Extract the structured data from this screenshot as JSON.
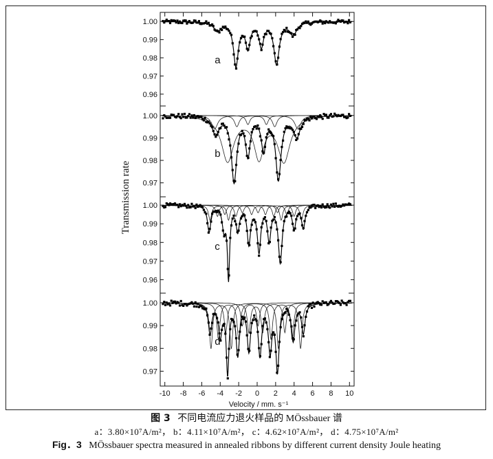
{
  "caption": {
    "cn_fig": "图 3",
    "cn_text": "不同电流应力退火样品的 MÖssbauer 谱",
    "sub_a": "a：3.80×10⁷A/m²，",
    "sub_b": "b：4.11×10⁷A/m²，",
    "sub_c": "c：4.62×10⁷A/m²，",
    "sub_d": "d：4.75×10⁷A/m²",
    "en_fig": "Fig．3",
    "en_text": "MÖssbauer spectra measured in annealed ribbons by different current density Joule heating"
  },
  "chart_data": {
    "type": "scatter",
    "xlabel": "Velocity / mm. s⁻¹",
    "ylabel": "Transmission rate",
    "xlim": [
      -10.5,
      10.5
    ],
    "xticks": [
      -10,
      -8,
      -6,
      -4,
      -2,
      0,
      2,
      4,
      6,
      8,
      10
    ],
    "series_style": "points with fitted line; subspectra as thin lines",
    "panels": [
      {
        "label": "a",
        "ylim": [
          0.955,
          1.005
        ],
        "yticks": [
          "1.00",
          "0.99",
          "0.98",
          "0.97",
          "0.96"
        ],
        "baseline": 1.0,
        "dips": [
          {
            "center": -4.3,
            "depth": 0.005,
            "width": 0.9
          },
          {
            "center": -2.3,
            "depth": 0.024,
            "width": 0.65
          },
          {
            "center": -1.0,
            "depth": 0.014,
            "width": 0.6
          },
          {
            "center": 0.45,
            "depth": 0.013,
            "width": 0.6
          },
          {
            "center": 2.1,
            "depth": 0.023,
            "width": 0.7
          },
          {
            "center": 3.9,
            "depth": 0.007,
            "width": 0.9
          }
        ],
        "subspectra": []
      },
      {
        "label": "b",
        "ylim": [
          0.965,
          1.003
        ],
        "yticks": [
          "1.00",
          "0.99",
          "0.98",
          "0.97"
        ],
        "baseline": 1.0,
        "dips": [
          {
            "center": -4.5,
            "depth": 0.008,
            "width": 0.9
          },
          {
            "center": -2.5,
            "depth": 0.029,
            "width": 0.7
          },
          {
            "center": -1.0,
            "depth": 0.017,
            "width": 0.6
          },
          {
            "center": 0.7,
            "depth": 0.015,
            "width": 0.6
          },
          {
            "center": 2.3,
            "depth": 0.028,
            "width": 0.7
          },
          {
            "center": 4.3,
            "depth": 0.009,
            "width": 0.9
          }
        ],
        "subspectra": [
          [
            {
              "center": -3.2,
              "depth": 0.02,
              "width": 1.6
            },
            {
              "center": 0.2,
              "depth": 0.018,
              "width": 1.3
            },
            {
              "center": 2.9,
              "depth": 0.02,
              "width": 1.6
            }
          ],
          [
            {
              "center": -4.6,
              "depth": 0.006,
              "width": 0.8
            },
            {
              "center": 4.4,
              "depth": 0.006,
              "width": 0.8
            }
          ],
          [
            {
              "center": -2.2,
              "depth": 0.005,
              "width": 0.6
            },
            {
              "center": 1.9,
              "depth": 0.005,
              "width": 0.6
            }
          ],
          [
            {
              "center": -1.0,
              "depth": 0.004,
              "width": 0.5
            },
            {
              "center": 1.0,
              "depth": 0.004,
              "width": 0.5
            }
          ]
        ]
      },
      {
        "label": "c",
        "ylim": [
          0.955,
          1.003
        ],
        "yticks": [
          "1.00",
          "0.99",
          "0.98",
          "0.97",
          "0.96"
        ],
        "baseline": 1.0,
        "dips": [
          {
            "center": -5.2,
            "depth": 0.014,
            "width": 0.45
          },
          {
            "center": -3.6,
            "depth": 0.012,
            "width": 0.45
          },
          {
            "center": -3.1,
            "depth": 0.038,
            "width": 0.3
          },
          {
            "center": -2.1,
            "depth": 0.013,
            "width": 0.45
          },
          {
            "center": -0.9,
            "depth": 0.02,
            "width": 0.45
          },
          {
            "center": 0.2,
            "depth": 0.024,
            "width": 0.45
          },
          {
            "center": 1.3,
            "depth": 0.018,
            "width": 0.45
          },
          {
            "center": 2.5,
            "depth": 0.03,
            "width": 0.5
          },
          {
            "center": 4.0,
            "depth": 0.012,
            "width": 0.45
          },
          {
            "center": 5.0,
            "depth": 0.012,
            "width": 0.45
          }
        ],
        "subspectra": [
          [
            {
              "center": -5.1,
              "depth": 0.008,
              "width": 0.4
            },
            {
              "center": -3.1,
              "depth": 0.008,
              "width": 0.4
            },
            {
              "center": 2.6,
              "depth": 0.008,
              "width": 0.4
            },
            {
              "center": 4.8,
              "depth": 0.008,
              "width": 0.4
            }
          ],
          [
            {
              "center": -4.3,
              "depth": 0.006,
              "width": 0.4
            },
            {
              "center": -2.3,
              "depth": 0.006,
              "width": 0.4
            },
            {
              "center": 1.8,
              "depth": 0.006,
              "width": 0.4
            },
            {
              "center": 4.0,
              "depth": 0.006,
              "width": 0.4
            }
          ],
          [
            {
              "center": -3.5,
              "depth": 0.005,
              "width": 0.4
            },
            {
              "center": -0.6,
              "depth": 0.005,
              "width": 0.4
            },
            {
              "center": 0.9,
              "depth": 0.005,
              "width": 0.4
            },
            {
              "center": 3.2,
              "depth": 0.005,
              "width": 0.4
            }
          ],
          [
            {
              "center": -1.6,
              "depth": 0.004,
              "width": 0.4
            },
            {
              "center": 0.1,
              "depth": 0.004,
              "width": 0.4
            },
            {
              "center": 2.2,
              "depth": 0.004,
              "width": 0.4
            }
          ]
        ]
      },
      {
        "label": "d",
        "ylim": [
          0.965,
          1.003
        ],
        "yticks": [
          "1.00",
          "0.99",
          "0.98",
          "0.97"
        ],
        "baseline": 1.0,
        "dips": [
          {
            "center": -5.1,
            "depth": 0.013,
            "width": 0.45
          },
          {
            "center": -4.0,
            "depth": 0.014,
            "width": 0.45
          },
          {
            "center": -3.2,
            "depth": 0.03,
            "width": 0.35
          },
          {
            "center": -2.1,
            "depth": 0.022,
            "width": 0.45
          },
          {
            "center": -0.9,
            "depth": 0.02,
            "width": 0.45
          },
          {
            "center": 0.3,
            "depth": 0.022,
            "width": 0.45
          },
          {
            "center": 1.4,
            "depth": 0.02,
            "width": 0.45
          },
          {
            "center": 2.2,
            "depth": 0.029,
            "width": 0.45
          },
          {
            "center": 3.9,
            "depth": 0.016,
            "width": 0.45
          },
          {
            "center": 5.0,
            "depth": 0.013,
            "width": 0.45
          }
        ],
        "subspectra": [
          [
            {
              "center": -5.0,
              "depth": 0.02,
              "width": 0.4
            },
            {
              "center": -2.8,
              "depth": 0.02,
              "width": 0.4
            },
            {
              "center": 2.3,
              "depth": 0.02,
              "width": 0.4
            },
            {
              "center": 4.7,
              "depth": 0.02,
              "width": 0.4
            }
          ],
          [
            {
              "center": -4.2,
              "depth": 0.016,
              "width": 0.4
            },
            {
              "center": -2.0,
              "depth": 0.016,
              "width": 0.4
            },
            {
              "center": 1.5,
              "depth": 0.016,
              "width": 0.4
            },
            {
              "center": 3.8,
              "depth": 0.016,
              "width": 0.4
            }
          ],
          [
            {
              "center": -3.4,
              "depth": 0.013,
              "width": 0.4
            },
            {
              "center": -0.9,
              "depth": 0.013,
              "width": 0.4
            },
            {
              "center": 0.6,
              "depth": 0.013,
              "width": 0.4
            },
            {
              "center": 3.0,
              "depth": 0.013,
              "width": 0.4
            }
          ],
          [
            {
              "center": -1.6,
              "depth": 0.01,
              "width": 0.4
            },
            {
              "center": 0.1,
              "depth": 0.01,
              "width": 0.4
            }
          ]
        ]
      }
    ]
  }
}
